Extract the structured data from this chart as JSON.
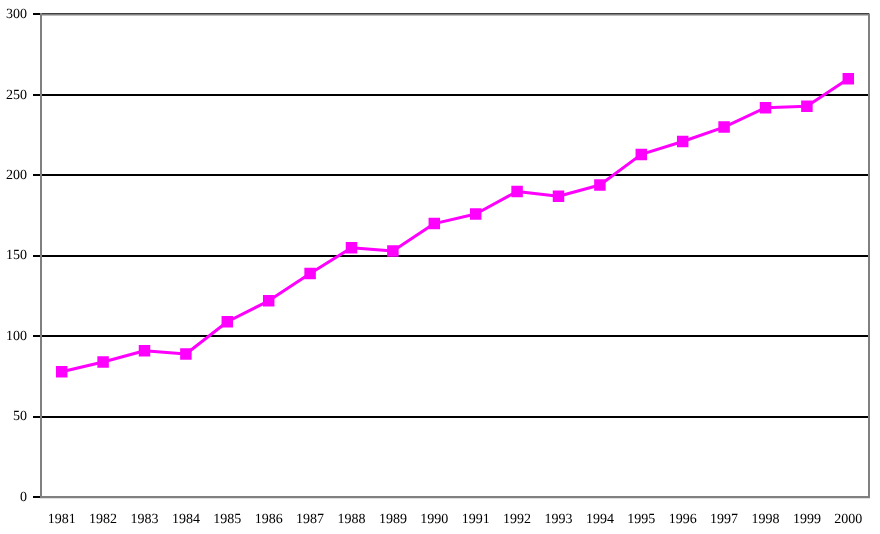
{
  "chart_data": {
    "type": "line",
    "categories": [
      "1981",
      "1982",
      "1983",
      "1984",
      "1985",
      "1986",
      "1987",
      "1988",
      "1989",
      "1990",
      "1991",
      "1992",
      "1993",
      "1994",
      "1995",
      "1996",
      "1997",
      "1998",
      "1999",
      "2000"
    ],
    "series": [
      {
        "color": "#ff00ff",
        "values": [
          78,
          84,
          91,
          89,
          109,
          122,
          139,
          155,
          153,
          170,
          176,
          190,
          187,
          194,
          213,
          221,
          230,
          242,
          243,
          260
        ]
      }
    ],
    "ylim": [
      0,
      300
    ],
    "yticks": [
      0,
      50,
      100,
      150,
      200,
      250,
      300
    ],
    "grid": "y",
    "legend": false,
    "marker": "square",
    "line_style": "solid"
  }
}
